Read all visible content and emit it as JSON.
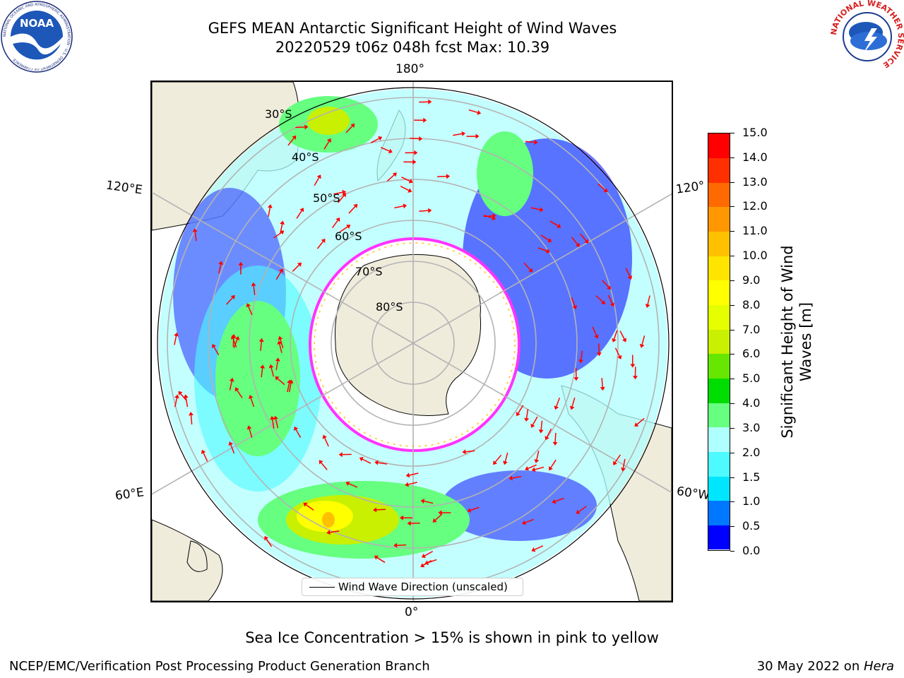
{
  "header": {
    "title_line1": "GEFS MEAN Antarctic Significant Height of Wind Waves",
    "title_line2": "20220529 t06z 048h fcst   Max: 10.39"
  },
  "logos": {
    "left_name": "NOAA",
    "left_ring_text": "NATIONAL OCEANIC AND ATMOSPHERIC ADMINISTRATION · U.S. DEPARTMENT OF COMMERCE",
    "right_ring_text": "NATIONAL WEATHER SERVICE"
  },
  "map": {
    "lon_labels": {
      "top": "180°",
      "bottom": "0°",
      "left_upper": "120°E",
      "left_lower": "60°E",
      "right_upper": "120°",
      "right_lower": "60°W"
    },
    "lat_labels": [
      "30°S",
      "40°S",
      "50°S",
      "60°S",
      "70°S",
      "80°S"
    ],
    "legend_text": "Wind Wave Direction (unscaled)",
    "colors": {
      "land": "#efecdc",
      "ice_edge": "#ff33ff",
      "ice_inner": "#ffd24d",
      "arrow": "#ff0000",
      "grid": "#b3b3b3"
    }
  },
  "colorbar": {
    "label_line1": "Significant Height of Wind",
    "label_line2": "Waves [m]",
    "ticks": [
      "0.0",
      "0.5",
      "1.0",
      "1.5",
      "2.0",
      "3.0",
      "4.0",
      "5.0",
      "6.0",
      "7.0",
      "8.0",
      "9.0",
      "10.0",
      "11.0",
      "12.0",
      "13.0",
      "14.0",
      "15.0"
    ],
    "colors": [
      "#0000ff",
      "#0077ff",
      "#00e6ff",
      "#4dfaff",
      "#b0ffff",
      "#66ff80",
      "#00dd00",
      "#66e600",
      "#c8f000",
      "#e6ff00",
      "#ffff00",
      "#ffe400",
      "#ffc000",
      "#ff9800",
      "#ff6a00",
      "#ff3000",
      "#ff0000"
    ]
  },
  "footer": {
    "sea_ice_note": "Sea Ice Concentration > 15% is shown in pink to yellow",
    "left": "NCEP/EMC/Verification Post Processing Product Generation Branch",
    "right_prefix": "30 May 2022 on ",
    "right_italic": "Hera"
  }
}
